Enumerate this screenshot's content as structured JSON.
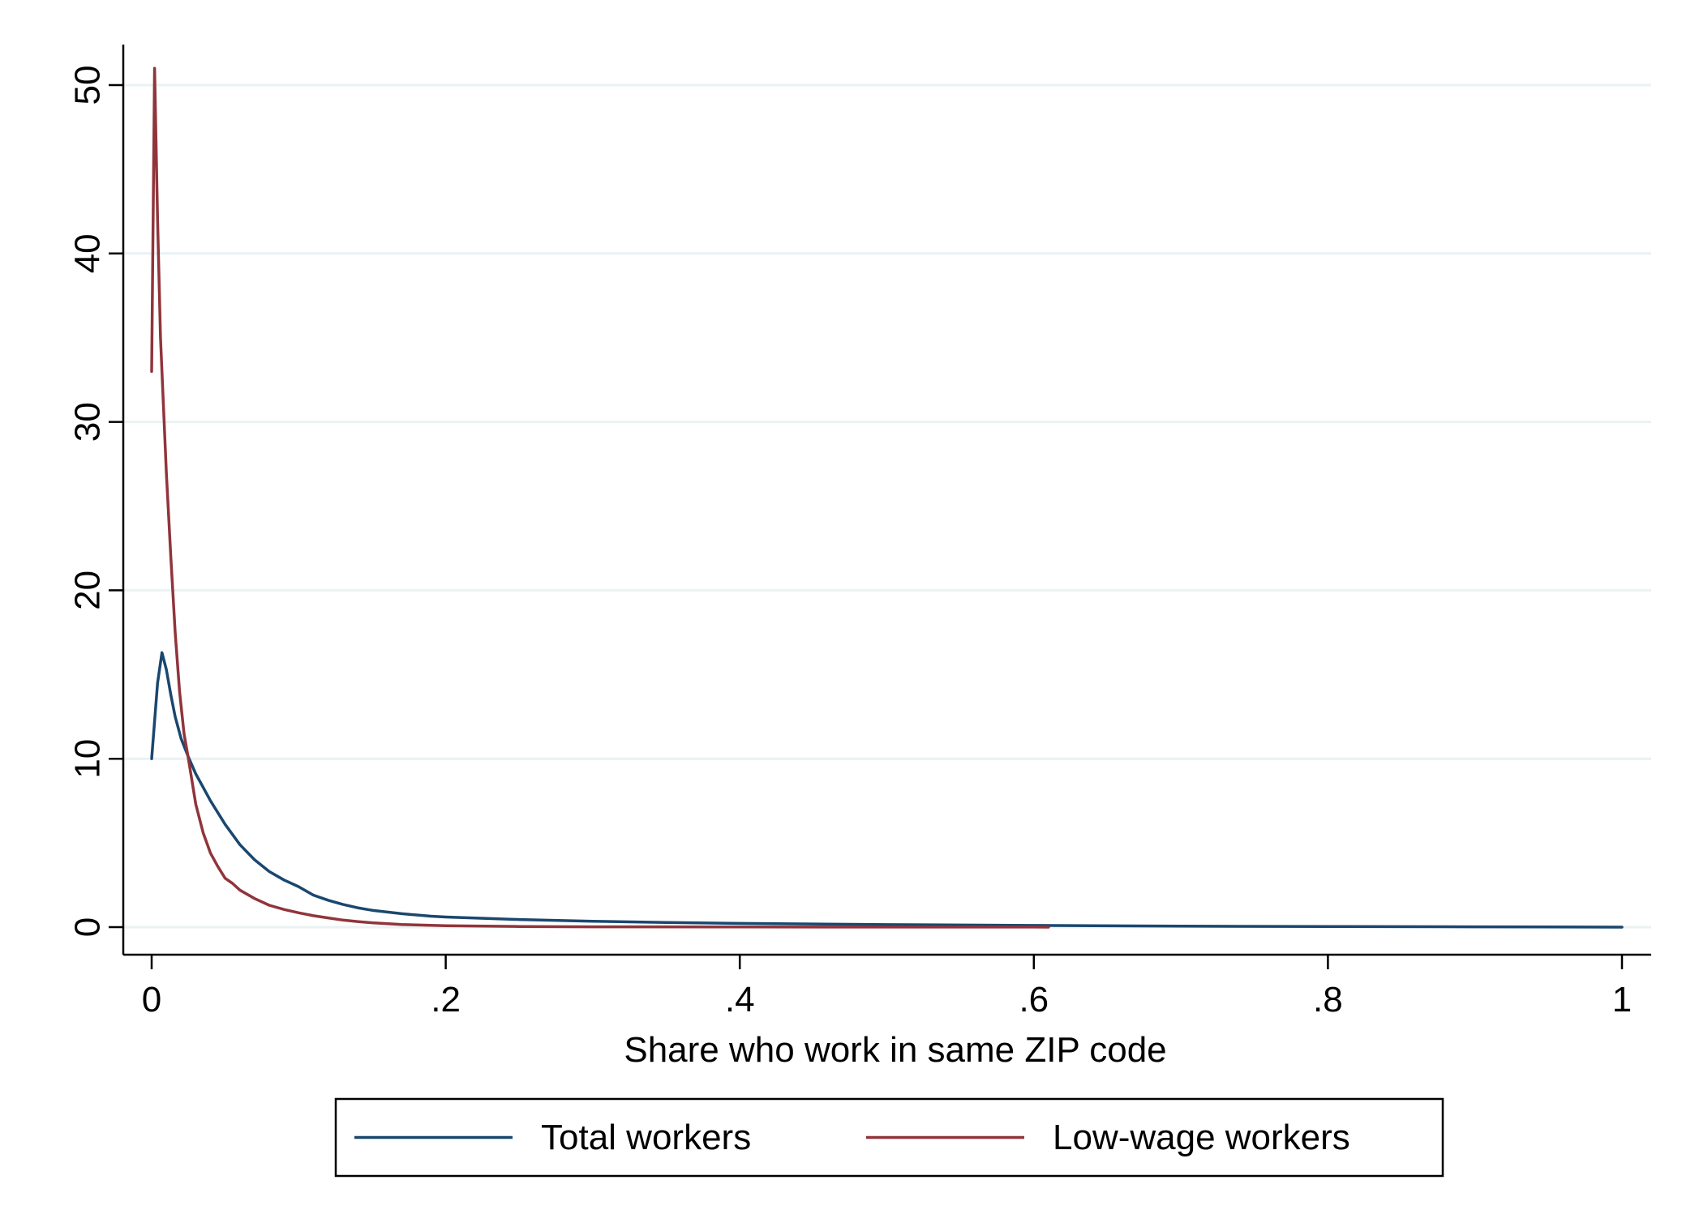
{
  "chart_data": {
    "type": "line",
    "title": "",
    "xlabel": "Share who work in same ZIP code",
    "ylabel": "",
    "xlim": [
      0,
      1
    ],
    "ylim": [
      0,
      50
    ],
    "x_ticks": [
      {
        "value": 0,
        "label": "0"
      },
      {
        "value": 0.2,
        "label": ".2"
      },
      {
        "value": 0.4,
        "label": ".4"
      },
      {
        "value": 0.6,
        "label": ".6"
      },
      {
        "value": 0.8,
        "label": ".8"
      },
      {
        "value": 1,
        "label": "1"
      }
    ],
    "y_ticks": [
      {
        "value": 0,
        "label": "0"
      },
      {
        "value": 10,
        "label": "10"
      },
      {
        "value": 20,
        "label": "20"
      },
      {
        "value": 30,
        "label": "30"
      },
      {
        "value": 40,
        "label": "40"
      },
      {
        "value": 50,
        "label": "50"
      }
    ],
    "grid": "horizontal",
    "legend_position": "bottom",
    "series": [
      {
        "name": "Total workers",
        "color": "#1a476f",
        "x": [
          0,
          0.004,
          0.007,
          0.01,
          0.013,
          0.016,
          0.02,
          0.025,
          0.03,
          0.035,
          0.04,
          0.05,
          0.06,
          0.07,
          0.08,
          0.09,
          0.1,
          0.11,
          0.12,
          0.13,
          0.14,
          0.15,
          0.17,
          0.19,
          0.2,
          0.25,
          0.3,
          0.35,
          0.4,
          0.5,
          0.6,
          0.7,
          0.8,
          0.9,
          1.0
        ],
        "y": [
          10,
          14.5,
          16.3,
          15.3,
          13.8,
          12.5,
          11.2,
          10.1,
          9.1,
          8.3,
          7.5,
          6.1,
          4.9,
          4.0,
          3.3,
          2.8,
          2.4,
          1.9,
          1.6,
          1.35,
          1.15,
          1.0,
          0.8,
          0.65,
          0.6,
          0.45,
          0.35,
          0.28,
          0.22,
          0.15,
          0.1,
          0.06,
          0.04,
          0.02,
          0.0
        ]
      },
      {
        "name": "Low-wage workers",
        "color": "#90353b",
        "x": [
          0,
          0.002,
          0.004,
          0.006,
          0.008,
          0.01,
          0.013,
          0.016,
          0.019,
          0.022,
          0.025,
          0.03,
          0.035,
          0.04,
          0.045,
          0.05,
          0.055,
          0.06,
          0.07,
          0.08,
          0.09,
          0.1,
          0.11,
          0.12,
          0.13,
          0.14,
          0.15,
          0.17,
          0.2,
          0.25,
          0.3,
          0.4,
          0.5,
          0.6,
          0.61
        ],
        "y": [
          33,
          51,
          42,
          35,
          31,
          27,
          22,
          17.5,
          14,
          11.5,
          10.0,
          7.3,
          5.6,
          4.4,
          3.6,
          2.9,
          2.6,
          2.2,
          1.7,
          1.3,
          1.05,
          0.85,
          0.68,
          0.55,
          0.42,
          0.33,
          0.26,
          0.16,
          0.08,
          0.04,
          0.02,
          0.01,
          0.005,
          0.003,
          0.0
        ]
      }
    ]
  }
}
